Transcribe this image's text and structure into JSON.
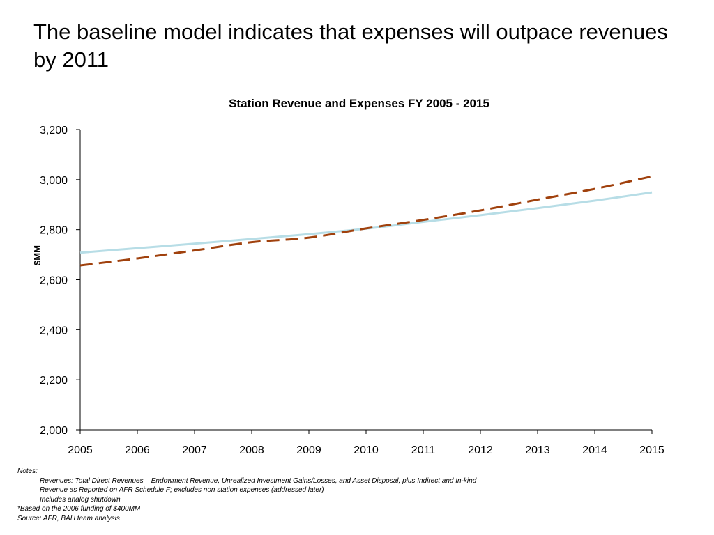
{
  "slide": {
    "title": "The baseline model indicates that expenses will outpace revenues by 2011"
  },
  "chart_data": {
    "type": "line",
    "title": "Station Revenue and Expenses FY 2005 - 2015",
    "xlabel": "",
    "ylabel": "$MM",
    "x": [
      2005,
      2006,
      2007,
      2008,
      2009,
      2010,
      2011,
      2012,
      2013,
      2014,
      2015
    ],
    "x_tick_labels": [
      "2005",
      "2006",
      "2007",
      "2008",
      "2009",
      "2010",
      "2011",
      "2012",
      "2013",
      "2014",
      "2015"
    ],
    "ylim": [
      2000,
      3200
    ],
    "y_ticks": [
      2000,
      2200,
      2400,
      2600,
      2800,
      3000,
      3200
    ],
    "y_tick_labels": [
      "2,000",
      "2,200",
      "2,400",
      "2,600",
      "2,800",
      "3,000",
      "3,200"
    ],
    "grid": false,
    "legend": "none",
    "series": [
      {
        "values": [
          2708,
          2726,
          2744,
          2763,
          2782,
          2804,
          2831,
          2858,
          2886,
          2916,
          2949
        ],
        "color": "#b7dde6",
        "style": "solid"
      },
      {
        "values": [
          2657,
          2685,
          2717,
          2750,
          2768,
          2805,
          2839,
          2877,
          2920,
          2963,
          3013
        ],
        "color": "#a0410d",
        "style": "dashed"
      }
    ]
  },
  "notes": {
    "heading": "Notes:",
    "lines": [
      "Revenues: Total Direct Revenues – Endowment Revenue, Unrealized Investment Gains/Losses, and Asset Disposal, plus Indirect  and In-kind",
      "Revenue as Reported on AFR Schedule F; excludes non station expenses (addressed later)",
      "Includes analog shutdown"
    ],
    "footnote": "*Based on the 2006 funding of $400MM",
    "source": "Source:  AFR, BAH team analysis"
  }
}
